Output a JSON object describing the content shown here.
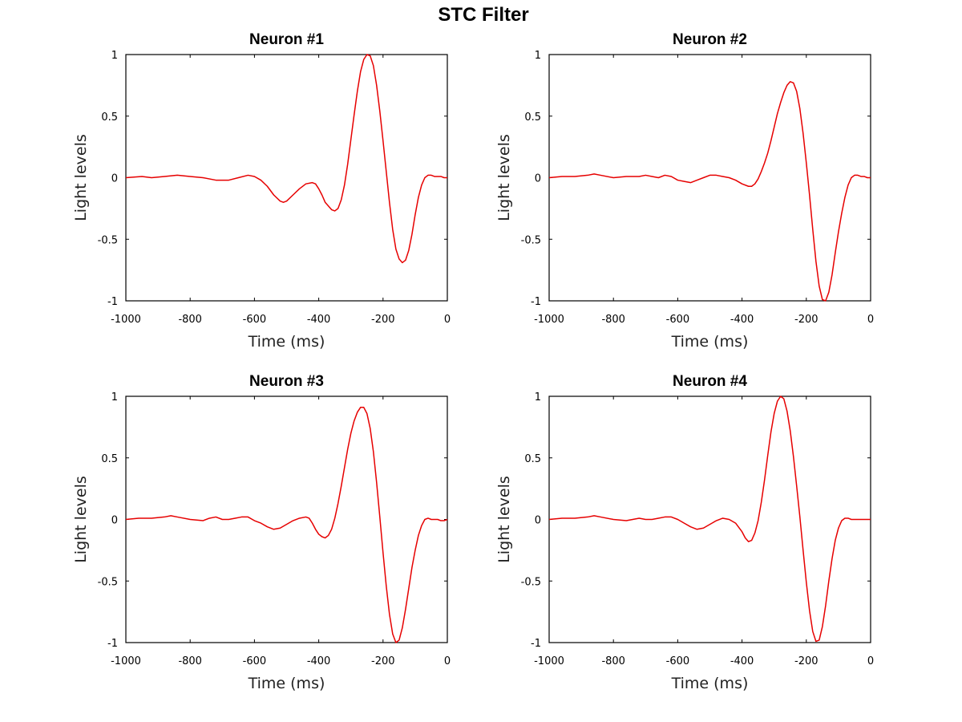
{
  "figure": {
    "title": "STC Filter",
    "line_color": "#e60000"
  },
  "chart_data": [
    {
      "type": "line",
      "title": "Neuron #1",
      "xlabel": "Time (ms)",
      "ylabel": "Light levels",
      "xlim": [
        -1000,
        0
      ],
      "ylim": [
        -1,
        1
      ],
      "xticks": [
        -1000,
        -800,
        -600,
        -400,
        -200,
        0
      ],
      "yticks": [
        -1,
        -0.5,
        0,
        0.5,
        1
      ],
      "grid": false,
      "series": [
        {
          "x": [
            -1000,
            -950,
            -920,
            -880,
            -840,
            -800,
            -760,
            -720,
            -680,
            -650,
            -620,
            -600,
            -580,
            -560,
            -540,
            -520,
            -510,
            -500,
            -480,
            -460,
            -440,
            -420,
            -410,
            -400,
            -390,
            -380,
            -360,
            -350,
            -340,
            -330,
            -320,
            -310,
            -300,
            -290,
            -280,
            -270,
            -260,
            -250,
            -240,
            -230,
            -220,
            -210,
            -200,
            -190,
            -180,
            -170,
            -160,
            -150,
            -140,
            -130,
            -120,
            -110,
            -100,
            -90,
            -80,
            -70,
            -60,
            -50,
            -40,
            -30,
            -20,
            -10,
            0
          ],
          "y": [
            0,
            0.01,
            0,
            0.01,
            0.02,
            0.01,
            0,
            -0.02,
            -0.02,
            0,
            0.02,
            0.01,
            -0.02,
            -0.07,
            -0.14,
            -0.19,
            -0.2,
            -0.19,
            -0.14,
            -0.09,
            -0.05,
            -0.04,
            -0.05,
            -0.09,
            -0.14,
            -0.2,
            -0.26,
            -0.27,
            -0.25,
            -0.18,
            -0.06,
            0.11,
            0.31,
            0.51,
            0.7,
            0.86,
            0.96,
            1.0,
            0.99,
            0.91,
            0.75,
            0.54,
            0.3,
            0.05,
            -0.2,
            -0.42,
            -0.58,
            -0.66,
            -0.69,
            -0.67,
            -0.59,
            -0.46,
            -0.3,
            -0.16,
            -0.06,
            0,
            0.02,
            0.02,
            0.01,
            0.01,
            0.01,
            0,
            0
          ]
        }
      ]
    },
    {
      "type": "line",
      "title": "Neuron #2",
      "xlabel": "Time (ms)",
      "ylabel": "Light levels",
      "xlim": [
        -1000,
        0
      ],
      "ylim": [
        -1,
        1
      ],
      "xticks": [
        -1000,
        -800,
        -600,
        -400,
        -200,
        0
      ],
      "yticks": [
        -1,
        -0.5,
        0,
        0.5,
        1
      ],
      "grid": false,
      "series": [
        {
          "x": [
            -1000,
            -960,
            -920,
            -880,
            -860,
            -840,
            -800,
            -760,
            -720,
            -700,
            -680,
            -660,
            -640,
            -620,
            -600,
            -580,
            -560,
            -540,
            -520,
            -500,
            -480,
            -460,
            -440,
            -420,
            -400,
            -380,
            -370,
            -360,
            -350,
            -340,
            -330,
            -320,
            -310,
            -300,
            -290,
            -280,
            -270,
            -260,
            -250,
            -240,
            -230,
            -220,
            -210,
            -200,
            -190,
            -180,
            -170,
            -160,
            -150,
            -140,
            -130,
            -120,
            -110,
            -100,
            -90,
            -80,
            -70,
            -60,
            -50,
            -40,
            -30,
            -20,
            -10,
            0
          ],
          "y": [
            0,
            0.01,
            0.01,
            0.02,
            0.03,
            0.02,
            0,
            0.01,
            0.01,
            0.02,
            0.01,
            0,
            0.02,
            0.01,
            -0.02,
            -0.03,
            -0.04,
            -0.02,
            0,
            0.02,
            0.02,
            0.01,
            0,
            -0.02,
            -0.05,
            -0.07,
            -0.07,
            -0.05,
            -0.01,
            0.05,
            0.12,
            0.2,
            0.3,
            0.41,
            0.52,
            0.61,
            0.69,
            0.75,
            0.78,
            0.77,
            0.7,
            0.56,
            0.36,
            0.12,
            -0.14,
            -0.42,
            -0.68,
            -0.88,
            -0.99,
            -1.0,
            -0.93,
            -0.79,
            -0.61,
            -0.44,
            -0.29,
            -0.16,
            -0.06,
            0,
            0.02,
            0.02,
            0.01,
            0.01,
            0,
            0
          ]
        }
      ]
    },
    {
      "type": "line",
      "title": "Neuron #3",
      "xlabel": "Time (ms)",
      "ylabel": "Light levels",
      "xlim": [
        -1000,
        0
      ],
      "ylim": [
        -1,
        1
      ],
      "xticks": [
        -1000,
        -800,
        -600,
        -400,
        -200,
        0
      ],
      "yticks": [
        -1,
        -0.5,
        0,
        0.5,
        1
      ],
      "grid": false,
      "series": [
        {
          "x": [
            -1000,
            -960,
            -920,
            -880,
            -860,
            -840,
            -800,
            -760,
            -740,
            -720,
            -700,
            -680,
            -660,
            -640,
            -620,
            -600,
            -580,
            -560,
            -540,
            -520,
            -500,
            -480,
            -460,
            -440,
            -430,
            -420,
            -410,
            -400,
            -390,
            -380,
            -370,
            -360,
            -350,
            -340,
            -330,
            -320,
            -310,
            -300,
            -290,
            -280,
            -270,
            -260,
            -250,
            -240,
            -230,
            -220,
            -210,
            -200,
            -190,
            -180,
            -170,
            -160,
            -150,
            -140,
            -130,
            -120,
            -110,
            -100,
            -90,
            -80,
            -70,
            -60,
            -50,
            -40,
            -30,
            -20,
            -10,
            0
          ],
          "y": [
            0,
            0.01,
            0.01,
            0.02,
            0.03,
            0.02,
            0,
            -0.01,
            0.01,
            0.02,
            0,
            0,
            0.01,
            0.02,
            0.02,
            -0.01,
            -0.03,
            -0.06,
            -0.08,
            -0.07,
            -0.04,
            -0.01,
            0.01,
            0.02,
            0.01,
            -0.03,
            -0.08,
            -0.12,
            -0.14,
            -0.15,
            -0.13,
            -0.08,
            0.01,
            0.13,
            0.27,
            0.42,
            0.57,
            0.7,
            0.8,
            0.87,
            0.91,
            0.91,
            0.86,
            0.74,
            0.55,
            0.3,
            0.02,
            -0.27,
            -0.54,
            -0.77,
            -0.93,
            -1.0,
            -0.98,
            -0.88,
            -0.73,
            -0.56,
            -0.39,
            -0.25,
            -0.13,
            -0.05,
            0,
            0.01,
            0,
            0,
            0,
            -0.01,
            -0.01,
            0
          ]
        }
      ]
    },
    {
      "type": "line",
      "title": "Neuron #4",
      "xlabel": "Time (ms)",
      "ylabel": "Light levels",
      "xlim": [
        -1000,
        0
      ],
      "ylim": [
        -1,
        1
      ],
      "xticks": [
        -1000,
        -800,
        -600,
        -400,
        -200,
        0
      ],
      "yticks": [
        -1,
        -0.5,
        0,
        0.5,
        1
      ],
      "grid": false,
      "series": [
        {
          "x": [
            -1000,
            -960,
            -920,
            -880,
            -860,
            -840,
            -800,
            -760,
            -740,
            -720,
            -700,
            -680,
            -660,
            -640,
            -620,
            -600,
            -580,
            -560,
            -540,
            -520,
            -500,
            -480,
            -460,
            -440,
            -420,
            -400,
            -390,
            -380,
            -370,
            -360,
            -350,
            -340,
            -330,
            -320,
            -310,
            -300,
            -290,
            -280,
            -270,
            -260,
            -250,
            -240,
            -230,
            -220,
            -210,
            -200,
            -190,
            -180,
            -170,
            -160,
            -150,
            -140,
            -130,
            -120,
            -110,
            -100,
            -90,
            -80,
            -70,
            -60,
            -50,
            -40,
            -30,
            -20,
            -10,
            0
          ],
          "y": [
            0,
            0.01,
            0.01,
            0.02,
            0.03,
            0.02,
            0,
            -0.01,
            0,
            0.01,
            0,
            0,
            0.01,
            0.02,
            0.02,
            0,
            -0.03,
            -0.06,
            -0.08,
            -0.07,
            -0.04,
            -0.01,
            0.01,
            0,
            -0.03,
            -0.1,
            -0.15,
            -0.18,
            -0.17,
            -0.11,
            -0.01,
            0.14,
            0.32,
            0.52,
            0.71,
            0.86,
            0.96,
            1.0,
            0.98,
            0.88,
            0.72,
            0.51,
            0.27,
            0.02,
            -0.25,
            -0.51,
            -0.74,
            -0.91,
            -0.99,
            -0.98,
            -0.87,
            -0.7,
            -0.5,
            -0.32,
            -0.17,
            -0.07,
            -0.01,
            0.01,
            0.01,
            0,
            0,
            0,
            0,
            0,
            0,
            0
          ]
        }
      ]
    }
  ]
}
